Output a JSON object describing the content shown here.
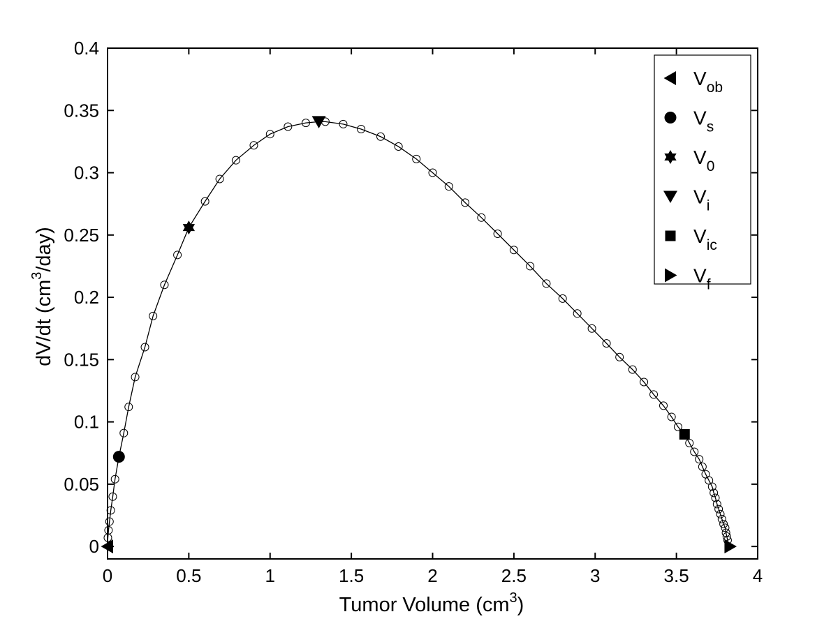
{
  "chart_data": {
    "type": "line",
    "title": "",
    "xlabel": "Tumor Volume (cm",
    "xlabel_sup": "3",
    "xlabel_end": ")",
    "ylabel": "dV/dt (cm",
    "ylabel_sup": "3",
    "ylabel_end": "/day)",
    "xlim": [
      0,
      4
    ],
    "ylim": [
      -0.01,
      0.4
    ],
    "xticks": [
      0,
      0.5,
      1,
      1.5,
      2,
      2.5,
      3,
      3.5,
      4
    ],
    "xtick_labels": [
      "0",
      "0.5",
      "1",
      "1.5",
      "2",
      "2.5",
      "3",
      "3.5",
      "4"
    ],
    "yticks": [
      0,
      0.05,
      0.1,
      0.15,
      0.2,
      0.25,
      0.3,
      0.35,
      0.4
    ],
    "ytick_labels": [
      "0",
      "0.05",
      "0.1",
      "0.15",
      "0.2",
      "0.25",
      "0.3",
      "0.35",
      "0.4"
    ],
    "grid": false,
    "legend_position": "top-right",
    "colors": {
      "line": "#000000",
      "marker": "#000000",
      "background": "#ffffff"
    },
    "series": [
      {
        "type": "line",
        "points": [
          [
            0,
            0
          ],
          [
            0.002,
            0.007
          ],
          [
            0.006,
            0.013
          ],
          [
            0.012,
            0.02
          ],
          [
            0.02,
            0.029
          ],
          [
            0.032,
            0.04
          ],
          [
            0.046,
            0.054
          ],
          [
            0.07,
            0.072
          ],
          [
            0.1,
            0.091
          ],
          [
            0.13,
            0.112
          ],
          [
            0.17,
            0.136
          ],
          [
            0.23,
            0.16
          ],
          [
            0.28,
            0.185
          ],
          [
            0.35,
            0.21
          ],
          [
            0.43,
            0.234
          ],
          [
            0.5,
            0.256
          ],
          [
            0.6,
            0.277
          ],
          [
            0.69,
            0.295
          ],
          [
            0.79,
            0.31
          ],
          [
            0.9,
            0.322
          ],
          [
            1.0,
            0.331
          ],
          [
            1.11,
            0.337
          ],
          [
            1.22,
            0.34
          ],
          [
            1.3,
            0.341
          ],
          [
            1.34,
            0.341
          ],
          [
            1.45,
            0.339
          ],
          [
            1.56,
            0.335
          ],
          [
            1.68,
            0.329
          ],
          [
            1.79,
            0.321
          ],
          [
            1.9,
            0.311
          ],
          [
            2.0,
            0.3
          ],
          [
            2.1,
            0.289
          ],
          [
            2.2,
            0.276
          ],
          [
            2.3,
            0.264
          ],
          [
            2.4,
            0.251
          ],
          [
            2.5,
            0.238
          ],
          [
            2.6,
            0.225
          ],
          [
            2.7,
            0.211
          ],
          [
            2.8,
            0.199
          ],
          [
            2.89,
            0.187
          ],
          [
            2.98,
            0.175
          ],
          [
            3.07,
            0.163
          ],
          [
            3.15,
            0.152
          ],
          [
            3.23,
            0.142
          ],
          [
            3.3,
            0.132
          ],
          [
            3.36,
            0.122
          ],
          [
            3.42,
            0.113
          ],
          [
            3.47,
            0.104
          ],
          [
            3.51,
            0.096
          ],
          [
            3.55,
            0.09
          ],
          [
            3.58,
            0.083
          ],
          [
            3.61,
            0.076
          ],
          [
            3.64,
            0.07
          ],
          [
            3.66,
            0.064
          ],
          [
            3.68,
            0.058
          ],
          [
            3.7,
            0.053
          ],
          [
            3.72,
            0.048
          ],
          [
            3.73,
            0.043
          ],
          [
            3.74,
            0.039
          ],
          [
            3.75,
            0.034
          ],
          [
            3.76,
            0.03
          ],
          [
            3.77,
            0.026
          ],
          [
            3.78,
            0.022
          ],
          [
            3.79,
            0.018
          ],
          [
            3.8,
            0.015
          ],
          [
            3.805,
            0.011
          ],
          [
            3.81,
            0.008
          ],
          [
            3.815,
            0.005
          ],
          [
            3.82,
            0.002
          ],
          [
            3.821,
            0.0
          ]
        ]
      },
      {
        "type": "scatter",
        "marker": "open-circle",
        "points": [
          [
            0.002,
            0.007
          ],
          [
            0.006,
            0.013
          ],
          [
            0.012,
            0.02
          ],
          [
            0.02,
            0.029
          ],
          [
            0.032,
            0.04
          ],
          [
            0.046,
            0.054
          ],
          [
            0.1,
            0.091
          ],
          [
            0.13,
            0.112
          ],
          [
            0.17,
            0.136
          ],
          [
            0.23,
            0.16
          ],
          [
            0.28,
            0.185
          ],
          [
            0.35,
            0.21
          ],
          [
            0.43,
            0.234
          ],
          [
            0.6,
            0.277
          ],
          [
            0.69,
            0.295
          ],
          [
            0.79,
            0.31
          ],
          [
            0.9,
            0.322
          ],
          [
            1.0,
            0.331
          ],
          [
            1.11,
            0.337
          ],
          [
            1.22,
            0.34
          ],
          [
            1.34,
            0.341
          ],
          [
            1.45,
            0.339
          ],
          [
            1.56,
            0.335
          ],
          [
            1.68,
            0.329
          ],
          [
            1.79,
            0.321
          ],
          [
            1.9,
            0.311
          ],
          [
            2.0,
            0.3
          ],
          [
            2.1,
            0.289
          ],
          [
            2.2,
            0.276
          ],
          [
            2.3,
            0.264
          ],
          [
            2.4,
            0.251
          ],
          [
            2.5,
            0.238
          ],
          [
            2.6,
            0.225
          ],
          [
            2.7,
            0.211
          ],
          [
            2.8,
            0.199
          ],
          [
            2.89,
            0.187
          ],
          [
            2.98,
            0.175
          ],
          [
            3.07,
            0.163
          ],
          [
            3.15,
            0.152
          ],
          [
            3.23,
            0.142
          ],
          [
            3.3,
            0.132
          ],
          [
            3.36,
            0.122
          ],
          [
            3.42,
            0.113
          ],
          [
            3.47,
            0.104
          ],
          [
            3.51,
            0.096
          ],
          [
            3.58,
            0.083
          ],
          [
            3.61,
            0.076
          ],
          [
            3.64,
            0.07
          ],
          [
            3.66,
            0.064
          ],
          [
            3.68,
            0.058
          ],
          [
            3.7,
            0.053
          ],
          [
            3.72,
            0.048
          ],
          [
            3.73,
            0.043
          ],
          [
            3.74,
            0.039
          ],
          [
            3.75,
            0.034
          ],
          [
            3.76,
            0.03
          ],
          [
            3.77,
            0.026
          ],
          [
            3.78,
            0.022
          ],
          [
            3.79,
            0.018
          ],
          [
            3.8,
            0.015
          ],
          [
            3.805,
            0.011
          ],
          [
            3.81,
            0.008
          ],
          [
            3.815,
            0.005
          ]
        ]
      }
    ],
    "special_points": [
      {
        "key": "V_ob",
        "label": "V",
        "sub": "ob",
        "marker": "triangle-left",
        "x": 0.0,
        "y": 0.0
      },
      {
        "key": "V_s",
        "label": "V",
        "sub": "s",
        "marker": "circle",
        "x": 0.07,
        "y": 0.072
      },
      {
        "key": "V_0",
        "label": "V",
        "sub": "0",
        "marker": "hexagram",
        "x": 0.5,
        "y": 0.256
      },
      {
        "key": "V_i",
        "label": "V",
        "sub": "i",
        "marker": "triangle-down",
        "x": 1.3,
        "y": 0.341
      },
      {
        "key": "V_ic",
        "label": "V",
        "sub": "ic",
        "marker": "square",
        "x": 3.55,
        "y": 0.09
      },
      {
        "key": "V_f",
        "label": "V",
        "sub": "f",
        "marker": "triangle-right",
        "x": 3.83,
        "y": 0.0
      }
    ]
  }
}
